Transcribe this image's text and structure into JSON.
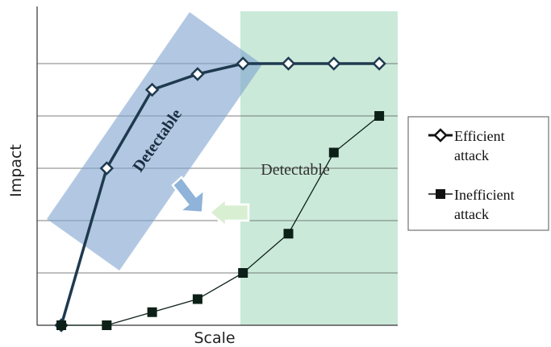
{
  "chart_data": {
    "type": "line",
    "xlabel": "Scale",
    "ylabel": "Impact",
    "xlim": [
      0,
      8
    ],
    "ylim": [
      0,
      6
    ],
    "x": [
      1,
      2,
      3,
      4,
      5,
      6,
      7,
      8
    ],
    "series": [
      {
        "name": "Efficient attack",
        "marker": "open-diamond",
        "color": "#1f3a4f",
        "values": [
          0,
          3,
          4.5,
          4.8,
          5.0,
          5.0,
          5.0,
          5.0
        ]
      },
      {
        "name": "Inefficient attack",
        "marker": "filled-square",
        "color": "#0d2018",
        "values": [
          0,
          0,
          0.25,
          0.5,
          1.0,
          1.75,
          3.3,
          4.0
        ]
      }
    ],
    "grid": true,
    "legend_position": "right",
    "annotations": [
      {
        "text": "Detectable",
        "region": "rotated-blue-band"
      },
      {
        "text": "Detectable",
        "region": "green-band"
      }
    ],
    "colors": {
      "blue_band": "#7ea4cf",
      "green_band": "#a8dac0",
      "arrow_blue": "#8fb3d9",
      "arrow_green": "#d9efd2"
    }
  }
}
